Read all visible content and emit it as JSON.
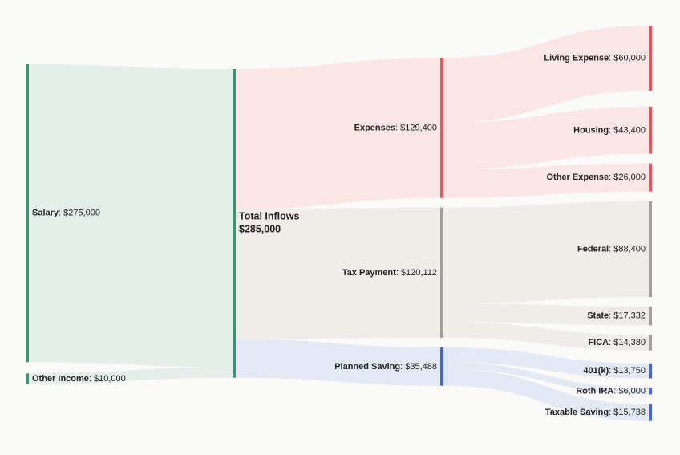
{
  "chart_data": {
    "type": "sankey",
    "title": "",
    "currency": "$",
    "colors": {
      "income": "#3f9173",
      "expense": "#e05a5f",
      "tax": "#a39e9a",
      "saving": "#4566d1",
      "income_band": "#e4efea",
      "expense_band": "#fbe6e6",
      "tax_band": "#f0ece8",
      "saving_band": "#e4e9f6"
    },
    "nodes": [
      {
        "id": "salary",
        "name": "Salary",
        "value": 275000,
        "value_label": "$275,000",
        "column": 0,
        "color": "income"
      },
      {
        "id": "other_income",
        "name": "Other Income",
        "value": 10000,
        "value_label": "$10,000",
        "column": 0,
        "color": "income"
      },
      {
        "id": "total",
        "name": "Total Inflows",
        "value": 285000,
        "value_label": "$285,000",
        "column": 1,
        "color": "income"
      },
      {
        "id": "expenses",
        "name": "Expenses",
        "value": 129400,
        "value_label": "$129,400",
        "column": 2,
        "color": "expense"
      },
      {
        "id": "tax",
        "name": "Tax Payment",
        "value": 120112,
        "value_label": "$120,112",
        "column": 2,
        "color": "tax"
      },
      {
        "id": "saving",
        "name": "Planned Saving",
        "value": 35488,
        "value_label": "$35,488",
        "column": 2,
        "color": "saving"
      },
      {
        "id": "living",
        "name": "Living Expense",
        "value": 60000,
        "value_label": "$60,000",
        "column": 3,
        "color": "expense"
      },
      {
        "id": "housing",
        "name": "Housing",
        "value": 43400,
        "value_label": "$43,400",
        "column": 3,
        "color": "expense"
      },
      {
        "id": "other_expense",
        "name": "Other Expense",
        "value": 26000,
        "value_label": "$26,000",
        "column": 3,
        "color": "expense"
      },
      {
        "id": "federal",
        "name": "Federal",
        "value": 88400,
        "value_label": "$88,400",
        "column": 3,
        "color": "tax"
      },
      {
        "id": "state",
        "name": "State",
        "value": 17332,
        "value_label": "$17,332",
        "column": 3,
        "color": "tax"
      },
      {
        "id": "fica",
        "name": "FICA",
        "value": 14380,
        "value_label": "$14,380",
        "column": 3,
        "color": "tax"
      },
      {
        "id": "k401",
        "name": "401(k)",
        "value": 13750,
        "value_label": "$13,750",
        "column": 3,
        "color": "saving"
      },
      {
        "id": "roth",
        "name": "Roth IRA",
        "value": 6000,
        "value_label": "$6,000",
        "column": 3,
        "color": "saving"
      },
      {
        "id": "taxable",
        "name": "Taxable Saving",
        "value": 15738,
        "value_label": "$15,738",
        "column": 3,
        "color": "saving"
      }
    ],
    "links": [
      {
        "source": "salary",
        "target": "total",
        "value": 275000,
        "band": "income_band"
      },
      {
        "source": "other_income",
        "target": "total",
        "value": 10000,
        "band": "income_band"
      },
      {
        "source": "total",
        "target": "expenses",
        "value": 129400,
        "band": "expense_band"
      },
      {
        "source": "total",
        "target": "tax",
        "value": 120112,
        "band": "tax_band"
      },
      {
        "source": "total",
        "target": "saving",
        "value": 35488,
        "band": "saving_band"
      },
      {
        "source": "expenses",
        "target": "living",
        "value": 60000,
        "band": "expense_band"
      },
      {
        "source": "expenses",
        "target": "housing",
        "value": 43400,
        "band": "expense_band"
      },
      {
        "source": "expenses",
        "target": "other_expense",
        "value": 26000,
        "band": "expense_band"
      },
      {
        "source": "tax",
        "target": "federal",
        "value": 88400,
        "band": "tax_band"
      },
      {
        "source": "tax",
        "target": "state",
        "value": 17332,
        "band": "tax_band"
      },
      {
        "source": "tax",
        "target": "fica",
        "value": 14380,
        "band": "tax_band"
      },
      {
        "source": "saving",
        "target": "k401",
        "value": 13750,
        "band": "saving_band"
      },
      {
        "source": "saving",
        "target": "roth",
        "value": 6000,
        "band": "saving_band"
      },
      {
        "source": "saving",
        "target": "taxable",
        "value": 15738,
        "band": "saving_band"
      }
    ]
  }
}
